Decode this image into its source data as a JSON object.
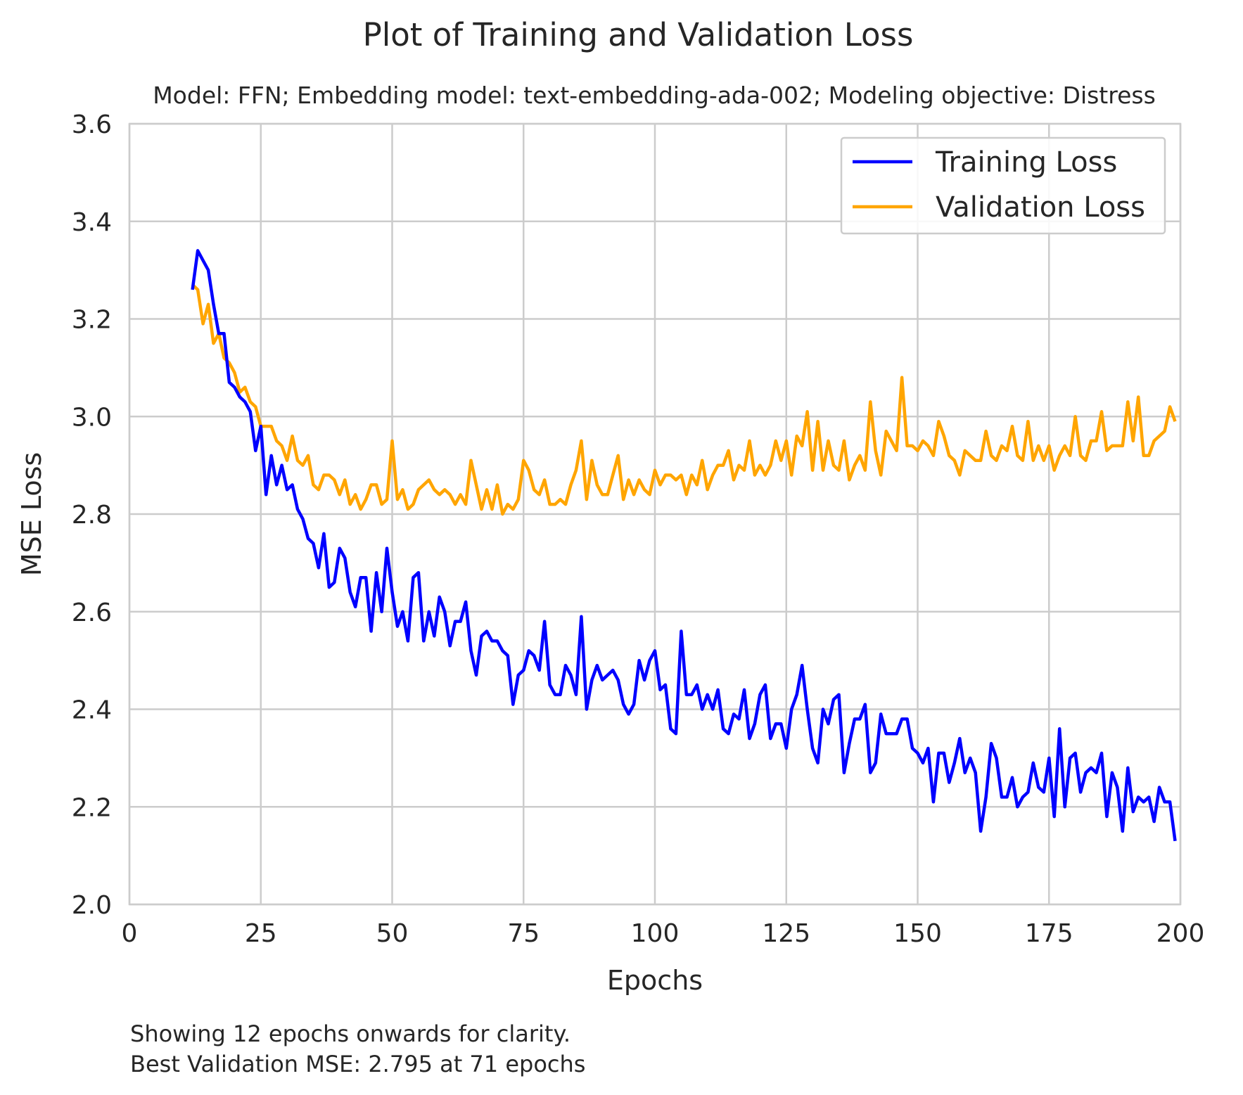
{
  "chart_data": {
    "type": "line",
    "title": "Plot of Training and Validation Loss",
    "subtitle": "Model: FFN; Embedding model: text-embedding-ada-002; Modeling objective: Distress",
    "xlabel": "Epochs",
    "ylabel": "MSE Loss",
    "xlim": [
      0,
      200
    ],
    "ylim": [
      2.0,
      3.6
    ],
    "xticks": [
      0,
      25,
      50,
      75,
      100,
      125,
      150,
      175,
      200
    ],
    "yticks": [
      2.0,
      2.2,
      2.4,
      2.6,
      2.8,
      3.0,
      3.2,
      3.4,
      3.6
    ],
    "yticks_labels": [
      "2.0",
      "2.2",
      "2.4",
      "2.6",
      "2.8",
      "3.0",
      "3.2",
      "3.4",
      "3.6"
    ],
    "grid": true,
    "legend_position": "top-right",
    "x_start": 12,
    "series": [
      {
        "name": "Training Loss",
        "color": "#0000ff",
        "values": [
          3.26,
          3.34,
          3.32,
          3.3,
          3.23,
          3.17,
          3.17,
          3.07,
          3.06,
          3.04,
          3.03,
          3.01,
          2.93,
          2.98,
          2.84,
          2.92,
          2.86,
          2.9,
          2.85,
          2.86,
          2.81,
          2.79,
          2.75,
          2.74,
          2.69,
          2.76,
          2.65,
          2.66,
          2.73,
          2.71,
          2.64,
          2.61,
          2.67,
          2.67,
          2.56,
          2.68,
          2.6,
          2.73,
          2.64,
          2.57,
          2.6,
          2.54,
          2.67,
          2.68,
          2.54,
          2.6,
          2.55,
          2.63,
          2.6,
          2.53,
          2.58,
          2.58,
          2.62,
          2.52,
          2.47,
          2.55,
          2.56,
          2.54,
          2.54,
          2.52,
          2.51,
          2.41,
          2.47,
          2.48,
          2.52,
          2.51,
          2.48,
          2.58,
          2.45,
          2.43,
          2.43,
          2.49,
          2.47,
          2.43,
          2.59,
          2.4,
          2.46,
          2.49,
          2.46,
          2.47,
          2.48,
          2.46,
          2.41,
          2.39,
          2.41,
          2.5,
          2.46,
          2.5,
          2.52,
          2.44,
          2.45,
          2.36,
          2.35,
          2.56,
          2.43,
          2.43,
          2.45,
          2.4,
          2.43,
          2.4,
          2.44,
          2.36,
          2.35,
          2.39,
          2.38,
          2.44,
          2.34,
          2.37,
          2.43,
          2.45,
          2.34,
          2.37,
          2.37,
          2.32,
          2.4,
          2.43,
          2.49,
          2.4,
          2.32,
          2.29,
          2.4,
          2.37,
          2.42,
          2.43,
          2.27,
          2.33,
          2.38,
          2.38,
          2.41,
          2.27,
          2.29,
          2.39,
          2.35,
          2.35,
          2.35,
          2.38,
          2.38,
          2.32,
          2.31,
          2.29,
          2.32,
          2.21,
          2.31,
          2.31,
          2.25,
          2.29,
          2.34,
          2.27,
          2.3,
          2.27,
          2.15,
          2.22,
          2.33,
          2.3,
          2.22,
          2.22,
          2.26,
          2.2,
          2.22,
          2.23,
          2.29,
          2.24,
          2.23,
          2.3,
          2.18,
          2.36,
          2.2,
          2.3,
          2.31,
          2.23,
          2.27,
          2.28,
          2.27,
          2.31,
          2.18,
          2.27,
          2.24,
          2.15,
          2.28,
          2.19,
          2.22,
          2.21,
          2.22,
          2.17,
          2.24,
          2.21,
          2.21,
          2.13
        ]
      },
      {
        "name": "Validation Loss",
        "color": "#ffa500",
        "values": [
          3.27,
          3.26,
          3.19,
          3.23,
          3.15,
          3.17,
          3.12,
          3.11,
          3.09,
          3.05,
          3.06,
          3.03,
          3.02,
          2.98,
          2.98,
          2.98,
          2.95,
          2.94,
          2.91,
          2.96,
          2.91,
          2.9,
          2.92,
          2.86,
          2.85,
          2.88,
          2.88,
          2.87,
          2.84,
          2.87,
          2.82,
          2.84,
          2.81,
          2.83,
          2.86,
          2.86,
          2.82,
          2.83,
          2.95,
          2.83,
          2.85,
          2.81,
          2.82,
          2.85,
          2.86,
          2.87,
          2.85,
          2.84,
          2.85,
          2.84,
          2.82,
          2.84,
          2.82,
          2.91,
          2.86,
          2.81,
          2.85,
          2.81,
          2.86,
          2.8,
          2.82,
          2.81,
          2.83,
          2.91,
          2.89,
          2.85,
          2.84,
          2.87,
          2.82,
          2.82,
          2.83,
          2.82,
          2.86,
          2.89,
          2.95,
          2.83,
          2.91,
          2.86,
          2.84,
          2.84,
          2.88,
          2.92,
          2.83,
          2.87,
          2.84,
          2.87,
          2.85,
          2.84,
          2.89,
          2.86,
          2.88,
          2.88,
          2.87,
          2.88,
          2.84,
          2.88,
          2.86,
          2.91,
          2.85,
          2.88,
          2.9,
          2.9,
          2.93,
          2.87,
          2.9,
          2.89,
          2.95,
          2.88,
          2.9,
          2.88,
          2.9,
          2.95,
          2.91,
          2.95,
          2.88,
          2.96,
          2.94,
          3.01,
          2.89,
          2.99,
          2.89,
          2.95,
          2.9,
          2.89,
          2.95,
          2.87,
          2.9,
          2.92,
          2.89,
          3.03,
          2.93,
          2.88,
          2.97,
          2.95,
          2.93,
          3.08,
          2.94,
          2.94,
          2.93,
          2.95,
          2.94,
          2.92,
          2.99,
          2.96,
          2.92,
          2.91,
          2.88,
          2.93,
          2.92,
          2.91,
          2.91,
          2.97,
          2.92,
          2.91,
          2.94,
          2.93,
          2.98,
          2.92,
          2.91,
          2.99,
          2.91,
          2.94,
          2.91,
          2.94,
          2.89,
          2.92,
          2.94,
          2.92,
          3.0,
          2.92,
          2.91,
          2.95,
          2.95,
          3.01,
          2.93,
          2.94,
          2.94,
          2.94,
          3.03,
          2.95,
          3.04,
          2.92,
          2.92,
          2.95,
          2.96,
          2.97,
          3.02,
          2.99
        ]
      }
    ],
    "annotations": [
      "Showing 12 epochs onwards for clarity.",
      "Best Validation MSE: 2.795 at 71 epochs"
    ]
  }
}
